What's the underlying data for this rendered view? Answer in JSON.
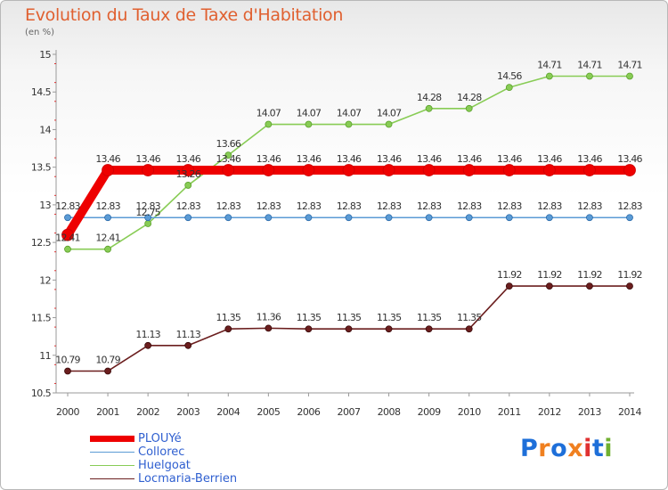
{
  "title": "Evolution du Taux de Taxe d'Habitation",
  "unit_label": "(en %)",
  "brand": {
    "letters": [
      "P",
      "r",
      "o",
      "x",
      "i",
      "t",
      "i"
    ],
    "colors": [
      "#1e6fd9",
      "#f08020",
      "#1e6fd9",
      "#f08020",
      "#e03030",
      "#1e6fd9",
      "#70b030"
    ]
  },
  "chart_data": {
    "type": "line",
    "title": "Evolution du Taux de Taxe d'Habitation",
    "ylabel": "(en %)",
    "xlabel": "",
    "x": [
      "2000",
      "2001",
      "2002",
      "2003",
      "2004",
      "2005",
      "2006",
      "2007",
      "2008",
      "2009",
      "2010",
      "2011",
      "2012",
      "2013",
      "2014"
    ],
    "ylim": [
      10.5,
      15
    ],
    "yticks": [
      "10.5",
      "11",
      "11.5",
      "12",
      "12.5",
      "13",
      "13.5",
      "14",
      "14.5",
      "15"
    ],
    "grid": false,
    "legend_position": "bottom-left",
    "series": [
      {
        "name": "PLOUYé",
        "color": "#ee0000",
        "values": [
          12.6,
          13.46,
          13.46,
          13.46,
          13.46,
          13.46,
          13.46,
          13.46,
          13.46,
          13.46,
          13.46,
          13.46,
          13.46,
          13.46,
          13.46
        ],
        "labels": [
          "",
          "13.46",
          "13.46",
          "13.46",
          "13.46",
          "13.46",
          "13.46",
          "13.46",
          "13.46",
          "13.46",
          "13.46",
          "13.46",
          "13.46",
          "13.46",
          "13.46"
        ]
      },
      {
        "name": "Collorec",
        "color": "#5b9bd5",
        "values": [
          12.83,
          12.83,
          12.83,
          12.83,
          12.83,
          12.83,
          12.83,
          12.83,
          12.83,
          12.83,
          12.83,
          12.83,
          12.83,
          12.83,
          12.83
        ],
        "labels": [
          "12.83",
          "12.83",
          "12.83",
          "12.83",
          "12.83",
          "12.83",
          "12.83",
          "12.83",
          "12.83",
          "12.83",
          "12.83",
          "12.83",
          "12.83",
          "12.83",
          "12.83"
        ]
      },
      {
        "name": "Huelgoat",
        "color": "#88cc55",
        "values": [
          12.41,
          12.41,
          12.75,
          13.26,
          13.66,
          14.07,
          14.07,
          14.07,
          14.07,
          14.28,
          14.28,
          14.56,
          14.71,
          14.71,
          14.71
        ],
        "labels": [
          "12.41",
          "12.41",
          "12.75",
          "13.26",
          "13.66",
          "14.07",
          "14.07",
          "14.07",
          "14.07",
          "14.28",
          "14.28",
          "14.56",
          "14.71",
          "14.71",
          "14.71"
        ]
      },
      {
        "name": "Locmaria-Berrien",
        "color": "#6b1e1e",
        "values": [
          10.79,
          10.79,
          11.13,
          11.13,
          11.35,
          11.36,
          11.35,
          11.35,
          11.35,
          11.35,
          11.35,
          11.92,
          11.92,
          11.92,
          11.92
        ],
        "labels": [
          "10.79",
          "10.79",
          "11.13",
          "11.13",
          "11.35",
          "11.36",
          "11.35",
          "11.35",
          "11.35",
          "11.35",
          "11.35",
          "11.92",
          "11.92",
          "11.92",
          "11.92"
        ]
      }
    ]
  }
}
